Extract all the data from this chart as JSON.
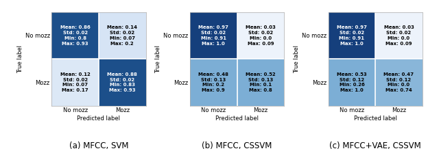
{
  "panels": [
    {
      "title": "(a) MFCC, SVM",
      "cells": [
        {
          "row": 0,
          "col": 0,
          "text": "Mean: 0.86\nStd: 0.02\nMin: 0.8\nMax: 0.93",
          "color": "#1c4f8a",
          "bright": false
        },
        {
          "row": 0,
          "col": 1,
          "text": "Mean: 0.14\nStd: 0.02\nMin: 0.07\nMax: 0.2",
          "color": "#d6e4f5",
          "bright": true
        },
        {
          "row": 1,
          "col": 0,
          "text": "Mean: 0.12\nStd: 0.02\nMin: 0.07\nMax: 0.17",
          "color": "#dce8f6",
          "bright": true
        },
        {
          "row": 1,
          "col": 1,
          "text": "Mean: 0.88\nStd: 0.02\nMin: 0.83\nMax: 0.93",
          "color": "#1c4f8a",
          "bright": false
        }
      ]
    },
    {
      "title": "(b) MFCC, CSSVM",
      "cells": [
        {
          "row": 0,
          "col": 0,
          "text": "Mean: 0.97\nStd: 0.02\nMin: 0.91\nMax: 1.0",
          "color": "#153f7c",
          "bright": false
        },
        {
          "row": 0,
          "col": 1,
          "text": "Mean: 0.03\nStd: 0.02\nMin: 0.0\nMax: 0.09",
          "color": "#edf3fb",
          "bright": true
        },
        {
          "row": 1,
          "col": 0,
          "text": "Mean: 0.48\nStd: 0.13\nMin: 0.2\nMax: 0.9",
          "color": "#7caed5",
          "bright": true
        },
        {
          "row": 1,
          "col": 1,
          "text": "Mean: 0.52\nStd: 0.13\nMin: 0.1\nMax: 0.8",
          "color": "#7caed5",
          "bright": true
        }
      ]
    },
    {
      "title": "(c) MFCC+VAE, CSSVM",
      "cells": [
        {
          "row": 0,
          "col": 0,
          "text": "Mean: 0.97\nStd: 0.02\nMin: 0.91\nMax: 1.0",
          "color": "#153f7c",
          "bright": false
        },
        {
          "row": 0,
          "col": 1,
          "text": "Mean: 0.03\nStd: 0.02\nMin: 0.0\nMax: 0.09",
          "color": "#edf3fb",
          "bright": true
        },
        {
          "row": 1,
          "col": 0,
          "text": "Mean: 0.53\nStd: 0.12\nMin: 0.26\nMax: 1.0",
          "color": "#7caed5",
          "bright": true
        },
        {
          "row": 1,
          "col": 1,
          "text": "Mean: 0.47\nStd: 0.12\nMin: 0.0\nMax: 0.74",
          "color": "#89b6d9",
          "bright": true
        }
      ]
    }
  ],
  "row_labels": [
    "No mozz",
    "Mozz"
  ],
  "col_labels": [
    "No mozz",
    "Mozz"
  ],
  "ylabel": "True label",
  "xlabel": "Predicted label",
  "text_color_dark": "#ffffff",
  "text_color_light": "#000000",
  "cell_text_fontsize": 5.0,
  "label_fontsize": 6.0,
  "tick_fontsize": 6.0,
  "title_fontsize": 8.5
}
